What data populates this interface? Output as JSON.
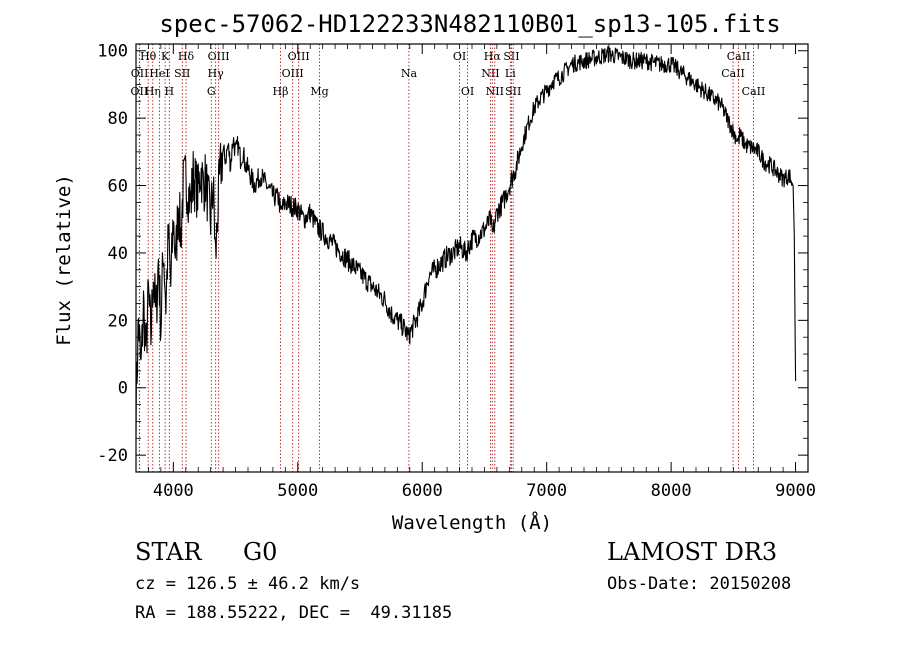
{
  "chart_data": {
    "type": "line",
    "title": "spec-57062-HD122233N482110B01_sp13-105.fits",
    "xlabel": "Wavelength (Å)",
    "ylabel": "Flux (relative)",
    "xlim": [
      3700,
      9100
    ],
    "ylim": [
      -25,
      102
    ],
    "xticks": [
      4000,
      5000,
      6000,
      7000,
      8000,
      9000
    ],
    "yticks": [
      -20,
      0,
      20,
      40,
      60,
      80,
      100
    ],
    "series": [
      {
        "name": "flux",
        "x": [
          3700,
          3720,
          3740,
          3760,
          3780,
          3800,
          3820,
          3840,
          3860,
          3880,
          3900,
          3920,
          3940,
          3960,
          3980,
          4000,
          4020,
          4040,
          4060,
          4080,
          4100,
          4120,
          4140,
          4160,
          4180,
          4200,
          4220,
          4240,
          4260,
          4280,
          4300,
          4320,
          4340,
          4360,
          4380,
          4400,
          4420,
          4440,
          4460,
          4480,
          4500,
          4520,
          4540,
          4560,
          4580,
          4600,
          4650,
          4700,
          4750,
          4800,
          4850,
          4860,
          4900,
          4950,
          5000,
          5050,
          5100,
          5150,
          5200,
          5250,
          5300,
          5350,
          5400,
          5450,
          5500,
          5550,
          5600,
          5650,
          5700,
          5750,
          5800,
          5850,
          5893,
          5900,
          5950,
          6000,
          6050,
          6100,
          6150,
          6200,
          6250,
          6300,
          6350,
          6400,
          6450,
          6500,
          6550,
          6563,
          6600,
          6650,
          6700,
          6750,
          6800,
          6850,
          6900,
          6950,
          7000,
          7050,
          7100,
          7200,
          7300,
          7400,
          7500,
          7600,
          7700,
          7800,
          7900,
          8000,
          8100,
          8200,
          8300,
          8400,
          8450,
          8500,
          8542,
          8550,
          8600,
          8662,
          8700,
          8750,
          8800,
          8850,
          8900,
          8950,
          8980,
          8990,
          9000
        ],
        "y": [
          -5,
          20,
          5,
          25,
          10,
          28,
          15,
          35,
          20,
          38,
          18,
          42,
          25,
          45,
          30,
          50,
          38,
          55,
          45,
          60,
          62,
          58,
          55,
          63,
          60,
          58,
          65,
          60,
          62,
          55,
          50,
          60,
          38,
          55,
          65,
          70,
          68,
          72,
          66,
          74,
          70,
          72,
          68,
          70,
          66,
          65,
          60,
          63,
          60,
          57,
          56,
          52,
          55,
          54,
          53,
          50,
          52,
          48,
          46,
          44,
          42,
          40,
          38,
          36,
          34,
          32,
          30,
          28,
          26,
          22,
          20,
          18,
          15,
          16,
          20,
          25,
          33,
          35,
          37,
          39,
          40,
          42,
          40,
          44,
          45,
          47,
          50,
          45,
          52,
          55,
          60,
          65,
          72,
          78,
          83,
          86,
          88,
          91,
          92,
          96,
          97,
          98,
          99,
          98,
          97,
          97,
          96,
          96,
          93,
          90,
          87,
          84,
          80,
          76,
          73,
          75,
          72,
          71,
          70,
          67,
          66,
          64,
          62,
          63,
          60,
          45,
          2
        ]
      }
    ],
    "line_markers": [
      {
        "label": "OII",
        "x": 3727,
        "row": 2
      },
      {
        "label": "OII",
        "x": 3729,
        "row": 1
      },
      {
        "label": "Hθ",
        "x": 3798,
        "row": 0
      },
      {
        "label": "Hη",
        "x": 3835,
        "row": 2
      },
      {
        "label": "HeI",
        "x": 3889,
        "row": 1
      },
      {
        "label": "K",
        "x": 3934,
        "row": 0
      },
      {
        "label": "H",
        "x": 3968,
        "row": 2
      },
      {
        "label": "SII",
        "x": 4072,
        "row": 1
      },
      {
        "label": "Hδ",
        "x": 4102,
        "row": 0
      },
      {
        "label": "OIII",
        "x": 4364,
        "row": 0
      },
      {
        "label": "Hγ",
        "x": 4340,
        "row": 1
      },
      {
        "label": "G",
        "x": 4305,
        "row": 2
      },
      {
        "label": "Hβ",
        "x": 4861,
        "row": 2
      },
      {
        "label": "OIII",
        "x": 4959,
        "row": 1
      },
      {
        "label": "OIII",
        "x": 5007,
        "row": 0
      },
      {
        "label": "Mg",
        "x": 5175,
        "row": 2
      },
      {
        "label": "Na",
        "x": 5893,
        "row": 1
      },
      {
        "label": "OI",
        "x": 6300,
        "row": 0
      },
      {
        "label": "OI",
        "x": 6364,
        "row": 2
      },
      {
        "label": "NII",
        "x": 6548,
        "row": 1
      },
      {
        "label": "Hα",
        "x": 6563,
        "row": 0
      },
      {
        "label": "NII",
        "x": 6583,
        "row": 2
      },
      {
        "label": "Li",
        "x": 6708,
        "row": 1
      },
      {
        "label": "SII",
        "x": 6717,
        "row": 0
      },
      {
        "label": "SII",
        "x": 6731,
        "row": 2
      },
      {
        "label": "CaII",
        "x": 8498,
        "row": 1
      },
      {
        "label": "CaII",
        "x": 8542,
        "row": 0
      },
      {
        "label": "CaII",
        "x": 8662,
        "row": 2
      }
    ]
  },
  "info": {
    "object_class": "STAR",
    "subclass": "G0",
    "survey": "LAMOST DR3",
    "cz": "cz = 126.5 ± 46.2 km/s",
    "obs_date": "Obs-Date: 20150208",
    "coords": "RA = 188.55222, DEC =  49.31185"
  }
}
